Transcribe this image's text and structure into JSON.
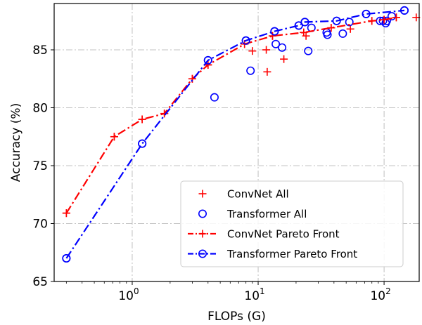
{
  "chart_data": {
    "type": "scatter",
    "xlabel": "FLOPs (G)",
    "ylabel": "Accuracy (%)",
    "xscale": "log",
    "xlim": [
      0.24,
      190
    ],
    "ylim": [
      65,
      89
    ],
    "xticks": [
      {
        "value": 1,
        "base": "10",
        "exp": "0"
      },
      {
        "value": 10,
        "base": "10",
        "exp": "1"
      },
      {
        "value": 100,
        "base": "10",
        "exp": "2"
      }
    ],
    "yticks": [
      65,
      70,
      75,
      80,
      85
    ],
    "grid": true,
    "legend_position": "lower-right",
    "series": [
      {
        "name": "ConvNet All",
        "color": "#ff0000",
        "marker": "plus",
        "points": [
          [
            0.3,
            70.9
          ],
          [
            0.72,
            77.5
          ],
          [
            1.2,
            79.0
          ],
          [
            1.8,
            79.5
          ],
          [
            3.0,
            82.5
          ],
          [
            4.0,
            83.7
          ],
          [
            7.8,
            85.5
          ],
          [
            9.0,
            84.9
          ],
          [
            11.6,
            85.0
          ],
          [
            11.8,
            83.1
          ],
          [
            13.0,
            86.2
          ],
          [
            16.0,
            84.2
          ],
          [
            23.0,
            86.5
          ],
          [
            24.0,
            86.2
          ],
          [
            38.0,
            86.9
          ],
          [
            54.0,
            86.8
          ],
          [
            80.0,
            87.5
          ],
          [
            100.0,
            87.6
          ],
          [
            125.0,
            87.8
          ],
          [
            180.0,
            87.8
          ]
        ]
      },
      {
        "name": "Transformer All",
        "color": "#0000ff",
        "marker": "circle",
        "points": [
          [
            0.3,
            67.0
          ],
          [
            1.2,
            76.9
          ],
          [
            4.0,
            84.1
          ],
          [
            4.5,
            80.9
          ],
          [
            8.0,
            85.8
          ],
          [
            8.7,
            83.2
          ],
          [
            13.5,
            86.6
          ],
          [
            13.8,
            85.5
          ],
          [
            15.5,
            85.2
          ],
          [
            21.0,
            87.1
          ],
          [
            23.5,
            87.4
          ],
          [
            25.0,
            84.9
          ],
          [
            26.5,
            86.9
          ],
          [
            35.0,
            86.5
          ],
          [
            35.5,
            86.3
          ],
          [
            42.0,
            87.5
          ],
          [
            47.0,
            86.4
          ],
          [
            53.0,
            87.4
          ],
          [
            72.0,
            88.1
          ],
          [
            93.0,
            87.5
          ],
          [
            98.0,
            87.5
          ],
          [
            103.0,
            87.3
          ],
          [
            105.0,
            87.5
          ],
          [
            115.0,
            87.9
          ],
          [
            145.0,
            88.4
          ]
        ]
      },
      {
        "name": "ConvNet Pareto Front",
        "color": "#ff0000",
        "marker": "plus",
        "line": "dashdot",
        "points": [
          [
            0.3,
            70.9
          ],
          [
            0.72,
            77.5
          ],
          [
            1.2,
            79.0
          ],
          [
            1.8,
            79.5
          ],
          [
            3.0,
            82.5
          ],
          [
            4.0,
            83.7
          ],
          [
            7.8,
            85.5
          ],
          [
            13.0,
            86.2
          ],
          [
            23.0,
            86.5
          ],
          [
            38.0,
            86.9
          ],
          [
            80.0,
            87.5
          ],
          [
            100.0,
            87.6
          ],
          [
            125.0,
            87.8
          ]
        ]
      },
      {
        "name": "Transformer Pareto Front",
        "color": "#0000ff",
        "marker": "circle",
        "line": "dashdot",
        "points": [
          [
            0.3,
            67.0
          ],
          [
            1.2,
            76.9
          ],
          [
            4.0,
            84.1
          ],
          [
            8.0,
            85.8
          ],
          [
            13.5,
            86.6
          ],
          [
            21.0,
            87.1
          ],
          [
            23.5,
            87.4
          ],
          [
            42.0,
            87.5
          ],
          [
            72.0,
            88.1
          ],
          [
            145.0,
            88.4
          ]
        ]
      }
    ]
  }
}
